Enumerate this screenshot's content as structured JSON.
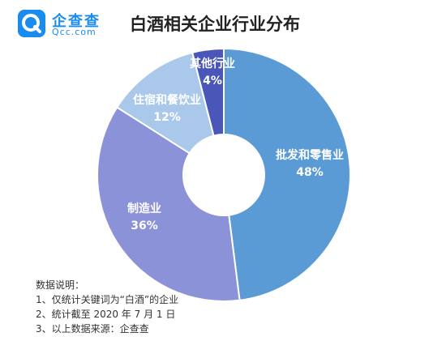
{
  "brand": {
    "name": "企查查",
    "domain": "Qcc.com",
    "icon": "qcc-logo-icon",
    "color": "#1a8cf0"
  },
  "title": "白酒相关企业行业分布",
  "notes": {
    "heading": "数据说明：",
    "items": [
      "1、仅统计关键词为“白酒”的企业",
      "2、统计截至 2020 年 7 月 1 日",
      "3、以上数据来源：企查查"
    ]
  },
  "chart_data": {
    "type": "pie",
    "subtype": "donut",
    "title": "白酒相关企业行业分布",
    "legend": "none",
    "slices": [
      {
        "label": "批发和零售业",
        "value": 48,
        "display": "48%",
        "color": "#5b9bd5"
      },
      {
        "label": "制造业",
        "value": 36,
        "display": "36%",
        "color": "#8c92d8"
      },
      {
        "label": "住宿和餐饮业",
        "value": 12,
        "display": "12%",
        "color": "#a9c8ea"
      },
      {
        "label": "其他行业",
        "value": 4,
        "display": "4%",
        "color": "#4b57b8"
      }
    ]
  }
}
